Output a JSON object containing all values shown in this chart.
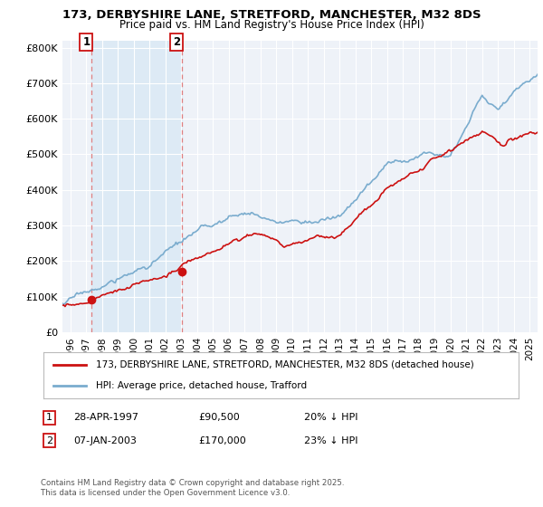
{
  "title1": "173, DERBYSHIRE LANE, STRETFORD, MANCHESTER, M32 8DS",
  "title2": "Price paid vs. HM Land Registry's House Price Index (HPI)",
  "ylabel_ticks": [
    "£0",
    "£100K",
    "£200K",
    "£300K",
    "£400K",
    "£500K",
    "£600K",
    "£700K",
    "£800K"
  ],
  "ytick_vals": [
    0,
    100000,
    200000,
    300000,
    400000,
    500000,
    600000,
    700000,
    800000
  ],
  "ylim": [
    0,
    820000
  ],
  "xlim_start": 1995.5,
  "xlim_end": 2025.5,
  "sale1_date": 1997.32,
  "sale1_price": 90500,
  "sale2_date": 2003.03,
  "sale2_price": 170000,
  "sale1_label": "1",
  "sale2_label": "2",
  "legend_line1": "173, DERBYSHIRE LANE, STRETFORD, MANCHESTER, M32 8DS (detached house)",
  "legend_line2": "HPI: Average price, detached house, Trafford",
  "ann1_label": "1",
  "ann1_date": "28-APR-1997",
  "ann1_price": "£90,500",
  "ann1_hpi": "20% ↓ HPI",
  "ann2_label": "2",
  "ann2_date": "07-JAN-2003",
  "ann2_price": "£170,000",
  "ann2_hpi": "23% ↓ HPI",
  "footnote": "Contains HM Land Registry data © Crown copyright and database right 2025.\nThis data is licensed under the Open Government Licence v3.0.",
  "hpi_color": "#7aacce",
  "price_color": "#cc1111",
  "marker_color": "#cc1111",
  "vline_color": "#e08080",
  "span_color": "#ddeaf5",
  "bg_plot": "#eef2f8",
  "bg_fig": "#ffffff",
  "grid_color": "#ffffff"
}
